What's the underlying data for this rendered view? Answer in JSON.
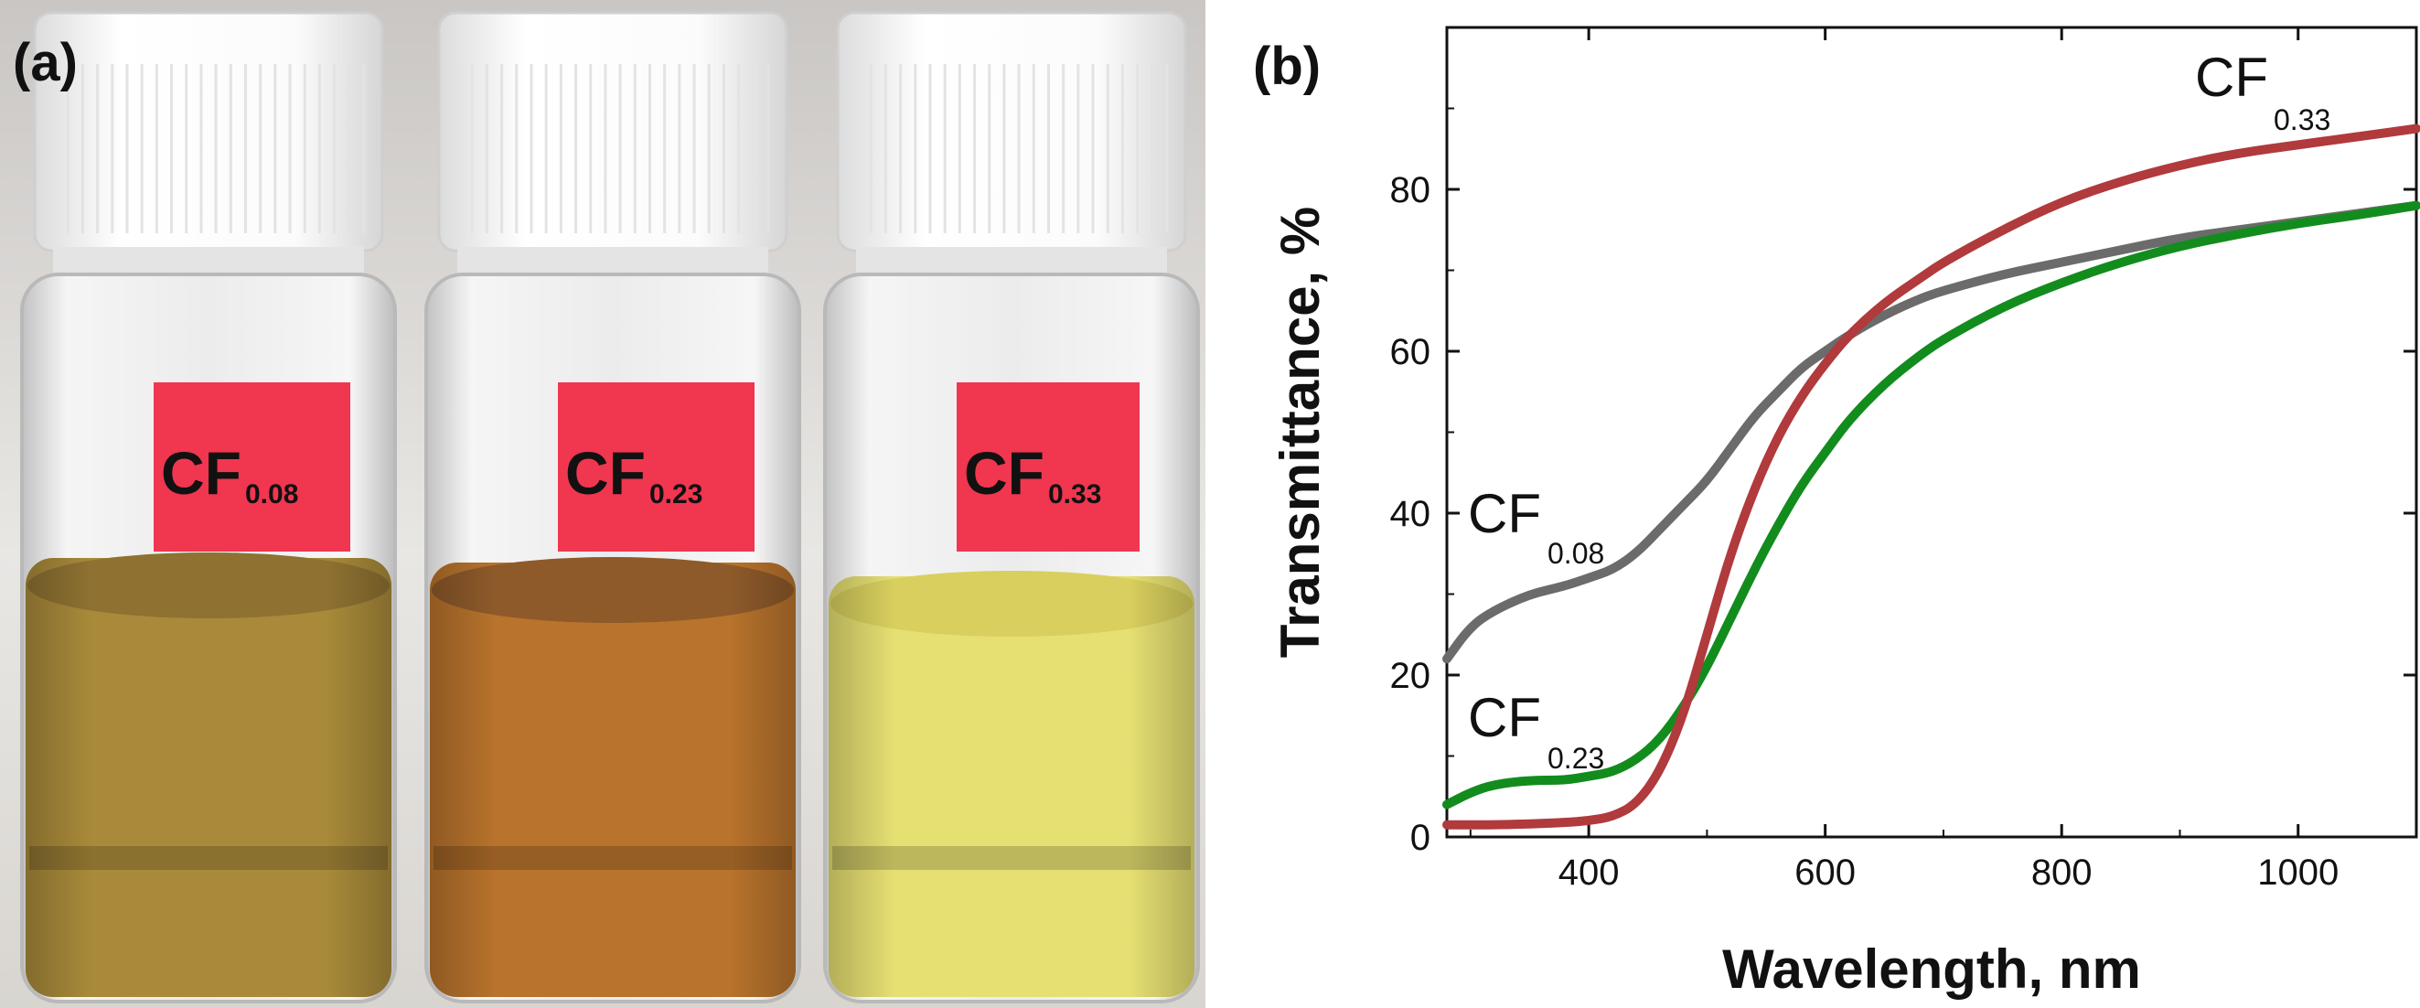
{
  "panel_a": {
    "label": "(a)",
    "vials": [
      {
        "label_main": "CF",
        "label_sub": "0.08",
        "liquid_color": "#a98a3a",
        "liquid_top_color": "#8f7232"
      },
      {
        "label_main": "CF",
        "label_sub": "0.23",
        "liquid_color": "#b8732c",
        "liquid_top_color": "#8e5a2a"
      },
      {
        "label_main": "CF",
        "label_sub": "0.33",
        "liquid_color": "#e6df72",
        "liquid_top_color": "#d8cf5e"
      }
    ],
    "cap_color": "#f4f4f4",
    "tag_color": "#f1364f"
  },
  "panel_b": {
    "label": "(b)"
  },
  "chart_data": {
    "type": "line",
    "title": "",
    "xlabel": "Wavelength, nm",
    "ylabel": "Transmittance, %",
    "xlim": [
      280,
      1100
    ],
    "ylim": [
      0,
      100
    ],
    "x_ticks": [
      400,
      600,
      800,
      1000
    ],
    "y_ticks": [
      0,
      20,
      40,
      60,
      80
    ],
    "grid": false,
    "series": [
      {
        "name": "CF0.08",
        "label_main": "CF",
        "label_sub": "0.08",
        "color": "#6b6b6b",
        "x": [
          280,
          300,
          320,
          350,
          380,
          400,
          420,
          440,
          460,
          480,
          500,
          520,
          540,
          560,
          580,
          600,
          620,
          650,
          680,
          700,
          750,
          800,
          850,
          900,
          950,
          1000,
          1050,
          1100
        ],
        "y": [
          22,
          26,
          28,
          30,
          31,
          32,
          33,
          35,
          38,
          41,
          44,
          48,
          52,
          55,
          58,
          60,
          62,
          64.5,
          66.5,
          67.5,
          69.5,
          71,
          72.5,
          74,
          75,
          76,
          77,
          78
        ]
      },
      {
        "name": "CF0.23",
        "label_main": "CF",
        "label_sub": "0.23",
        "color": "#138c1e",
        "x": [
          280,
          300,
          320,
          350,
          380,
          400,
          420,
          440,
          460,
          480,
          500,
          520,
          540,
          560,
          580,
          600,
          620,
          650,
          680,
          700,
          750,
          800,
          850,
          900,
          950,
          1000,
          1050,
          1100
        ],
        "y": [
          4,
          5.5,
          6.5,
          7,
          7,
          7.5,
          8,
          9.5,
          12,
          16,
          21,
          27,
          33,
          38.5,
          43.5,
          47.5,
          51.5,
          56,
          59.5,
          61.5,
          65.5,
          68.5,
          71,
          73,
          74.5,
          75.8,
          76.8,
          78
        ]
      },
      {
        "name": "CF0.33",
        "label_main": "CF",
        "label_sub": "0.33",
        "color": "#b03a3c",
        "x": [
          280,
          300,
          320,
          350,
          380,
          400,
          420,
          440,
          460,
          480,
          500,
          520,
          540,
          560,
          580,
          600,
          620,
          650,
          680,
          700,
          750,
          800,
          850,
          900,
          950,
          1000,
          1050,
          1100
        ],
        "y": [
          1.5,
          1.5,
          1.5,
          1.6,
          1.8,
          2,
          2.5,
          4,
          8,
          15,
          25,
          35,
          43,
          49.5,
          54.5,
          58.5,
          62,
          66,
          69,
          71,
          75,
          78.5,
          81,
          83,
          84.5,
          85.5,
          86.5,
          87.5
        ]
      }
    ]
  }
}
